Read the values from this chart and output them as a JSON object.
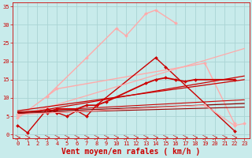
{
  "bg_color": "#c8ebeb",
  "grid_color": "#aad4d4",
  "xlabel": "Vent moyen/en rafales ( km/h )",
  "xlabel_color": "#cc0000",
  "xlabel_fontsize": 7,
  "tick_color": "#cc0000",
  "xlim": [
    -0.5,
    23.5
  ],
  "ylim": [
    -1,
    36
  ],
  "yticks": [
    0,
    5,
    10,
    15,
    20,
    25,
    30,
    35
  ],
  "series": [
    {
      "x": [
        3,
        7,
        10,
        11,
        13,
        14,
        16
      ],
      "y": [
        10.5,
        21,
        29,
        27,
        33,
        34,
        30.5
      ],
      "color": "#ffaaaa",
      "lw": 1.0,
      "marker": "D",
      "ms": 2.0
    },
    {
      "x": [
        0,
        3,
        4,
        19,
        22
      ],
      "y": [
        4.5,
        10.5,
        12.5,
        19.5,
        3.0
      ],
      "color": "#ffaaaa",
      "lw": 1.0,
      "marker": "D",
      "ms": 2.0
    },
    {
      "x": [
        0,
        1,
        3,
        4,
        5,
        6,
        7,
        8,
        14,
        15,
        22
      ],
      "y": [
        2.5,
        0.5,
        7,
        6,
        5,
        6.5,
        5,
        8,
        21,
        18.5,
        1
      ],
      "color": "#cc0000",
      "lw": 1.0,
      "marker": "D",
      "ms": 2.0
    },
    {
      "x": [
        3,
        4,
        6,
        7,
        8,
        9,
        13,
        14,
        15,
        16,
        17,
        18,
        22
      ],
      "y": [
        6,
        7,
        7,
        8,
        8,
        9,
        14,
        15,
        15.5,
        15,
        14.5,
        15,
        15
      ],
      "color": "#cc0000",
      "lw": 1.3,
      "marker": "D",
      "ms": 2.0
    },
    {
      "x": [
        0,
        23
      ],
      "y": [
        5.5,
        16.0
      ],
      "color": "#cc0000",
      "lw": 0.9,
      "marker": null,
      "ms": 0
    },
    {
      "x": [
        0,
        23
      ],
      "y": [
        5.0,
        23.5
      ],
      "color": "#ffaaaa",
      "lw": 0.9,
      "marker": null,
      "ms": 0
    },
    {
      "x": [
        0,
        23
      ],
      "y": [
        6.5,
        15.0
      ],
      "color": "#cc0000",
      "lw": 0.9,
      "marker": null,
      "ms": 0
    },
    {
      "x": [
        0,
        23
      ],
      "y": [
        6.0,
        8.5
      ],
      "color": "#880000",
      "lw": 0.9,
      "marker": null,
      "ms": 0
    },
    {
      "x": [
        0,
        23
      ],
      "y": [
        6.2,
        9.5
      ],
      "color": "#cc0000",
      "lw": 0.8,
      "marker": null,
      "ms": 0
    },
    {
      "x": [
        0,
        23
      ],
      "y": [
        5.8,
        7.5
      ],
      "color": "#990000",
      "lw": 0.8,
      "marker": null,
      "ms": 0
    },
    {
      "x": [
        0,
        19,
        22,
        23
      ],
      "y": [
        5.5,
        8.0,
        2.5,
        3.0
      ],
      "color": "#ffaaaa",
      "lw": 0.9,
      "marker": "D",
      "ms": 2.0
    }
  ]
}
